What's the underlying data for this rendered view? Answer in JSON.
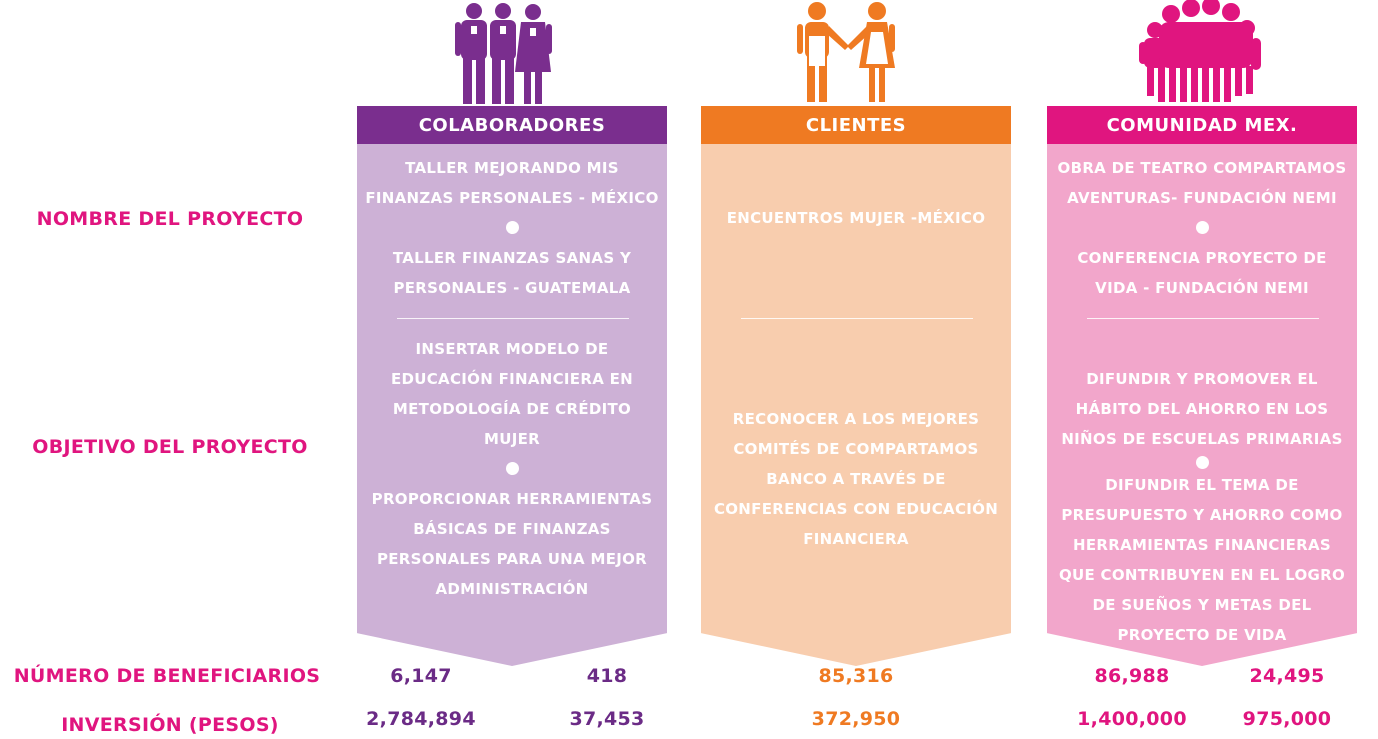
{
  "row_labels": {
    "project_name": "NOMBRE DEL PROYECTO",
    "project_objective": "OBJETIVO DEL PROYECTO",
    "beneficiaries": "NÚMERO DE BENEFICIARIOS",
    "investment": "INVERSIÓN (PESOS)"
  },
  "columns": [
    {
      "title": "COLABORADORES",
      "header_color": "#7a2e8e",
      "body_color": "#cdb1d6",
      "value_color": "#6b2b86",
      "names": [
        "TALLER MEJORANDO MIS FINANZAS PERSONALES - MÉXICO",
        "TALLER FINANZAS SANAS Y PERSONALES - GUATEMALA"
      ],
      "objectives": [
        "INSERTAR MODELO DE EDUCACIÓN FINANCIERA EN METODOLOGÍA DE CRÉDITO MUJER",
        "PROPORCIONAR HERRAMIENTAS BÁSICAS DE FINANZAS PERSONALES PARA UNA MEJOR ADMINISTRACIÓN"
      ],
      "beneficiaries": [
        "6,147",
        "418"
      ],
      "investment": [
        "2,784,894",
        "37,453"
      ]
    },
    {
      "title": "CLIENTES",
      "header_color": "#ef7a22",
      "body_color": "#f8cdae",
      "value_color": "#ef7a22",
      "names": [
        "ENCUENTROS MUJER -MÉXICO"
      ],
      "objectives": [
        "RECONOCER A LOS MEJORES COMITÉS DE COMPARTAMOS BANCO A TRAVÉS DE CONFERENCIAS CON EDUCACIÓN FINANCIERA"
      ],
      "beneficiaries": [
        "85,316"
      ],
      "investment": [
        "372,950"
      ]
    },
    {
      "title": "COMUNIDAD MEX.",
      "header_color": "#e0157f",
      "body_color": "#f2a6cb",
      "value_color": "#e0157f",
      "names": [
        "OBRA DE TEATRO COMPARTAMOS AVENTURAS- FUNDACIÓN NEMI",
        "CONFERENCIA PROYECTO DE VIDA - FUNDACIÓN NEMI"
      ],
      "objectives": [
        "DIFUNDIR Y PROMOVER EL HÁBITO DEL AHORRO EN  LOS NIÑOS DE ESCUELAS PRIMARIAS",
        "DIFUNDIR EL TEMA DE PRESUPUESTO Y AHORRO COMO HERRAMIENTAS FINANCIERAS QUE CONTRIBUYEN EN EL LOGRO DE SUEÑOS Y METAS DEL PROYECTO DE VIDA"
      ],
      "beneficiaries": [
        "86,988",
        "24,495"
      ],
      "investment": [
        "1,400,000",
        "975,000"
      ]
    }
  ],
  "icons": [
    "staff-group-icon",
    "clients-couple-icon",
    "community-crowd-icon"
  ]
}
